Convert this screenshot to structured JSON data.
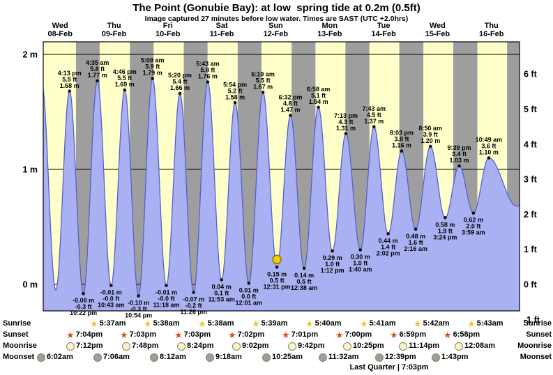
{
  "title": "The Point (Gonubie Bay): at low  spring tide at 0.2m (0.5ft)",
  "subtitle": "Image captured 27 minutes before low water. Times are SAST (UTC +2.0hrs)",
  "days": [
    {
      "name": "Wed",
      "date": "08-Feb"
    },
    {
      "name": "Thu",
      "date": "09-Feb"
    },
    {
      "name": "Fri",
      "date": "10-Feb"
    },
    {
      "name": "Sat",
      "date": "11-Feb"
    },
    {
      "name": "Sun",
      "date": "12-Feb"
    },
    {
      "name": "Mon",
      "date": "13-Feb"
    },
    {
      "name": "Tue",
      "date": "14-Feb"
    },
    {
      "name": "Wed",
      "date": "15-Feb"
    },
    {
      "name": "Thu",
      "date": "16-Feb"
    }
  ],
  "colors": {
    "day_bg": "#ffffc9",
    "night_bg": "#9e9e9e",
    "tide_fill": "#a9b1f3",
    "tide_edge": "#5560cf",
    "day_label_red": "#e60000",
    "current_marker": "#f2d000",
    "sunrise_star": "#e8c227",
    "sunset_star": "#dd4b1a",
    "moonrise_circle": "#faf5c8",
    "moonset_circle": "#9e9e9e"
  },
  "chart_data": {
    "type": "area",
    "ylabel_left": "metres",
    "ylabel_right": "feet",
    "ylim_m": [
      -0.23,
      2.11
    ],
    "grid": "horizontal-metre-lines",
    "y_axis_m": [
      {
        "v": 2,
        "label": "2 m"
      },
      {
        "v": 1,
        "label": "1 m"
      },
      {
        "v": 0,
        "label": "0 m"
      }
    ],
    "y_axis_ft": [
      {
        "v": 6,
        "label": "6 ft"
      },
      {
        "v": 5,
        "label": "5 ft"
      },
      {
        "v": 4,
        "label": "4 ft"
      },
      {
        "v": 3,
        "label": "3 ft"
      },
      {
        "v": 2,
        "label": "2 ft"
      },
      {
        "v": 1,
        "label": "1 ft"
      },
      {
        "v": 0,
        "label": "0 ft"
      },
      {
        "v": -1,
        "label": "-1 ft"
      }
    ],
    "tides": [
      {
        "kind": "high",
        "day": 0,
        "time": "4:13 pm",
        "ft": "5.5",
        "m": "1.68"
      },
      {
        "kind": "low",
        "day": 0,
        "time": "10:22 pm",
        "ft": "-0.3",
        "m": "-0.08"
      },
      {
        "kind": "high",
        "day": 1,
        "time": "4:35 am",
        "ft": "5.8",
        "m": "1.77"
      },
      {
        "kind": "low",
        "day": 1,
        "time": "10:43 am",
        "ft": "-0.0",
        "m": "-0.01"
      },
      {
        "kind": "high",
        "day": 1,
        "time": "4:46 pm",
        "ft": "5.5",
        "m": "1.69"
      },
      {
        "kind": "low",
        "day": 1,
        "time": "10:54 pm",
        "ft": "-0.3",
        "m": "-0.10"
      },
      {
        "kind": "high",
        "day": 2,
        "time": "5:09 am",
        "ft": "5.9",
        "m": "1.79"
      },
      {
        "kind": "low",
        "day": 2,
        "time": "11:18 am",
        "ft": "-0.0",
        "m": "-0.01"
      },
      {
        "kind": "high",
        "day": 2,
        "time": "5:20 pm",
        "ft": "5.4",
        "m": "1.66"
      },
      {
        "kind": "low",
        "day": 2,
        "time": "11:26 pm",
        "ft": "-0.2",
        "m": "-0.07"
      },
      {
        "kind": "high",
        "day": 3,
        "time": "5:43 am",
        "ft": "5.8",
        "m": "1.76"
      },
      {
        "kind": "low",
        "day": 3,
        "time": "11:53 am",
        "ft": "0.1",
        "m": "0.04"
      },
      {
        "kind": "high",
        "day": 3,
        "time": "5:54 pm",
        "ft": "5.2",
        "m": "1.58"
      },
      {
        "kind": "low",
        "day": 4,
        "time": "12:01 am",
        "ft": "0.0",
        "m": "0.01"
      },
      {
        "kind": "high",
        "day": 4,
        "time": "6:19 am",
        "ft": "5.5",
        "m": "1.67"
      },
      {
        "kind": "low",
        "day": 4,
        "time": "12:31 pm",
        "ft": "0.5",
        "m": "0.15",
        "current": true
      },
      {
        "kind": "high",
        "day": 4,
        "time": "6:32 pm",
        "ft": "4.8",
        "m": "1.47"
      },
      {
        "kind": "low",
        "day": 5,
        "time": "12:38 am",
        "ft": "0.5",
        "m": "0.14"
      },
      {
        "kind": "high",
        "day": 5,
        "time": "6:58 am",
        "ft": "5.1",
        "m": "1.54"
      },
      {
        "kind": "low",
        "day": 5,
        "time": "1:12 pm",
        "ft": "1.0",
        "m": "0.29"
      },
      {
        "kind": "high",
        "day": 5,
        "time": "7:13 pm",
        "ft": "4.3",
        "m": "1.31"
      },
      {
        "kind": "low",
        "day": 6,
        "time": "1:40 am",
        "ft": "1.0",
        "m": "0.30"
      },
      {
        "kind": "high",
        "day": 6,
        "time": "7:43 am",
        "ft": "4.5",
        "m": "1.37"
      },
      {
        "kind": "low",
        "day": 6,
        "time": "2:02 pm",
        "ft": "1.4",
        "m": "0.44"
      },
      {
        "kind": "high",
        "day": 6,
        "time": "8:03 pm",
        "ft": "3.8",
        "m": "1.16"
      },
      {
        "kind": "low",
        "day": 7,
        "time": "2:16 am",
        "ft": "1.6",
        "m": "0.48"
      },
      {
        "kind": "high",
        "day": 7,
        "time": "8:50 am",
        "ft": "3.9",
        "m": "1.20"
      },
      {
        "kind": "low",
        "day": 7,
        "time": "3:24 pm",
        "ft": "1.9",
        "m": "0.58"
      },
      {
        "kind": "high",
        "day": 7,
        "time": "9:39 pm",
        "ft": "3.4",
        "m": "1.03"
      },
      {
        "kind": "low",
        "day": 8,
        "time": "3:59 am",
        "ft": "2.0",
        "m": "0.62"
      },
      {
        "kind": "high",
        "day": 8,
        "time": "10:49 am",
        "ft": "3.6",
        "m": "1.10"
      }
    ],
    "curve_edges": [
      {
        "day": 0,
        "time": "3:50 am",
        "m": "1.75"
      },
      {
        "day": 0,
        "time": "10:05 am",
        "m": "-0.05"
      },
      {
        "day": 8,
        "time": "11:18 pm",
        "m": "0.68"
      },
      {
        "day": 9,
        "time": "10:30 am",
        "m": "1.05"
      }
    ],
    "last_night_start": {
      "day": 8,
      "time": "6:57pm"
    }
  },
  "astro": {
    "rows": [
      {
        "id": "sunrise",
        "label": "Sunrise",
        "icon": "star-yellow",
        "entries": [
          {
            "day": 1,
            "time": "5:37am"
          },
          {
            "day": 2,
            "time": "5:38am"
          },
          {
            "day": 3,
            "time": "5:38am"
          },
          {
            "day": 4,
            "time": "5:39am"
          },
          {
            "day": 5,
            "time": "5:40am"
          },
          {
            "day": 6,
            "time": "5:41am"
          },
          {
            "day": 7,
            "time": "5:42am"
          },
          {
            "day": 8,
            "time": "5:43am"
          }
        ]
      },
      {
        "id": "sunset",
        "label": "Sunset",
        "icon": "star-red",
        "entries": [
          {
            "day": 0,
            "time": "7:04pm"
          },
          {
            "day": 1,
            "time": "7:03pm"
          },
          {
            "day": 2,
            "time": "7:03pm"
          },
          {
            "day": 3,
            "time": "7:02pm"
          },
          {
            "day": 4,
            "time": "7:01pm"
          },
          {
            "day": 5,
            "time": "7:00pm"
          },
          {
            "day": 6,
            "time": "6:59pm"
          },
          {
            "day": 7,
            "time": "6:58pm"
          }
        ]
      },
      {
        "id": "moonrise",
        "label": "Moonrise",
        "icon": "circle-pale",
        "entries": [
          {
            "day": 0,
            "time": "7:12pm"
          },
          {
            "day": 1,
            "time": "7:48pm"
          },
          {
            "day": 2,
            "time": "8:24pm"
          },
          {
            "day": 3,
            "time": "9:02pm"
          },
          {
            "day": 4,
            "time": "9:42pm"
          },
          {
            "day": 5,
            "time": "10:25pm"
          },
          {
            "day": 6,
            "time": "11:14pm"
          },
          {
            "day": 8,
            "time": "12:08am"
          }
        ]
      },
      {
        "id": "moonset",
        "label": "Moonset",
        "icon": "circle-gray",
        "entries": [
          {
            "day": 0,
            "time": "6:02am"
          },
          {
            "day": 1,
            "time": "7:06am"
          },
          {
            "day": 2,
            "time": "8:12am"
          },
          {
            "day": 3,
            "time": "9:18am"
          },
          {
            "day": 4,
            "time": "10:25am"
          },
          {
            "day": 5,
            "time": "11:32am"
          },
          {
            "day": 6,
            "time": "12:39pm"
          },
          {
            "day": 7,
            "time": "1:43pm"
          }
        ]
      }
    ],
    "moon_phase": "Last Quarter | 7:03pm"
  }
}
